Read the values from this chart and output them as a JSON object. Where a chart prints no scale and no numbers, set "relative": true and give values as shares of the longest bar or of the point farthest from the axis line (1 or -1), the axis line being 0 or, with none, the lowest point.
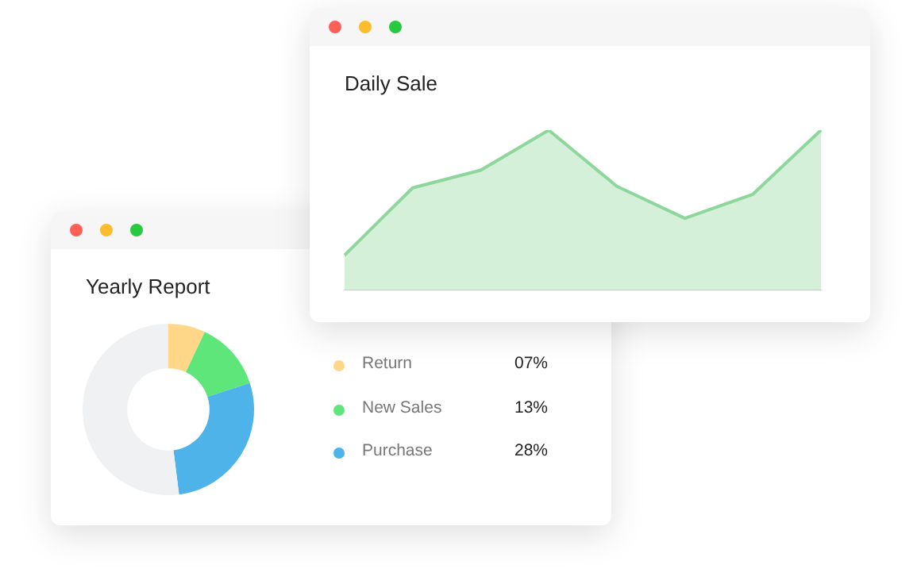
{
  "chart_data": [
    {
      "type": "area",
      "title": "Daily Sale",
      "relative": true,
      "categories": [
        null,
        null,
        null,
        null,
        null,
        null,
        null,
        null
      ],
      "values": [
        0.22,
        0.64,
        0.75,
        1,
        0.65,
        0.45,
        0.6,
        1
      ],
      "color": "#8ed79c"
    },
    {
      "type": "donut",
      "title": "Yearly Report",
      "legend": "right",
      "categories": [
        "Return",
        "New Sales",
        "Purchase",
        null
      ],
      "values": [
        7,
        13,
        28,
        52
      ],
      "value_labels": [
        "07%",
        "13%",
        "28%",
        null
      ],
      "colors": [
        "#fed888",
        "#5ee67a",
        "#4db3e8",
        "#f0f1f3"
      ]
    }
  ]
}
